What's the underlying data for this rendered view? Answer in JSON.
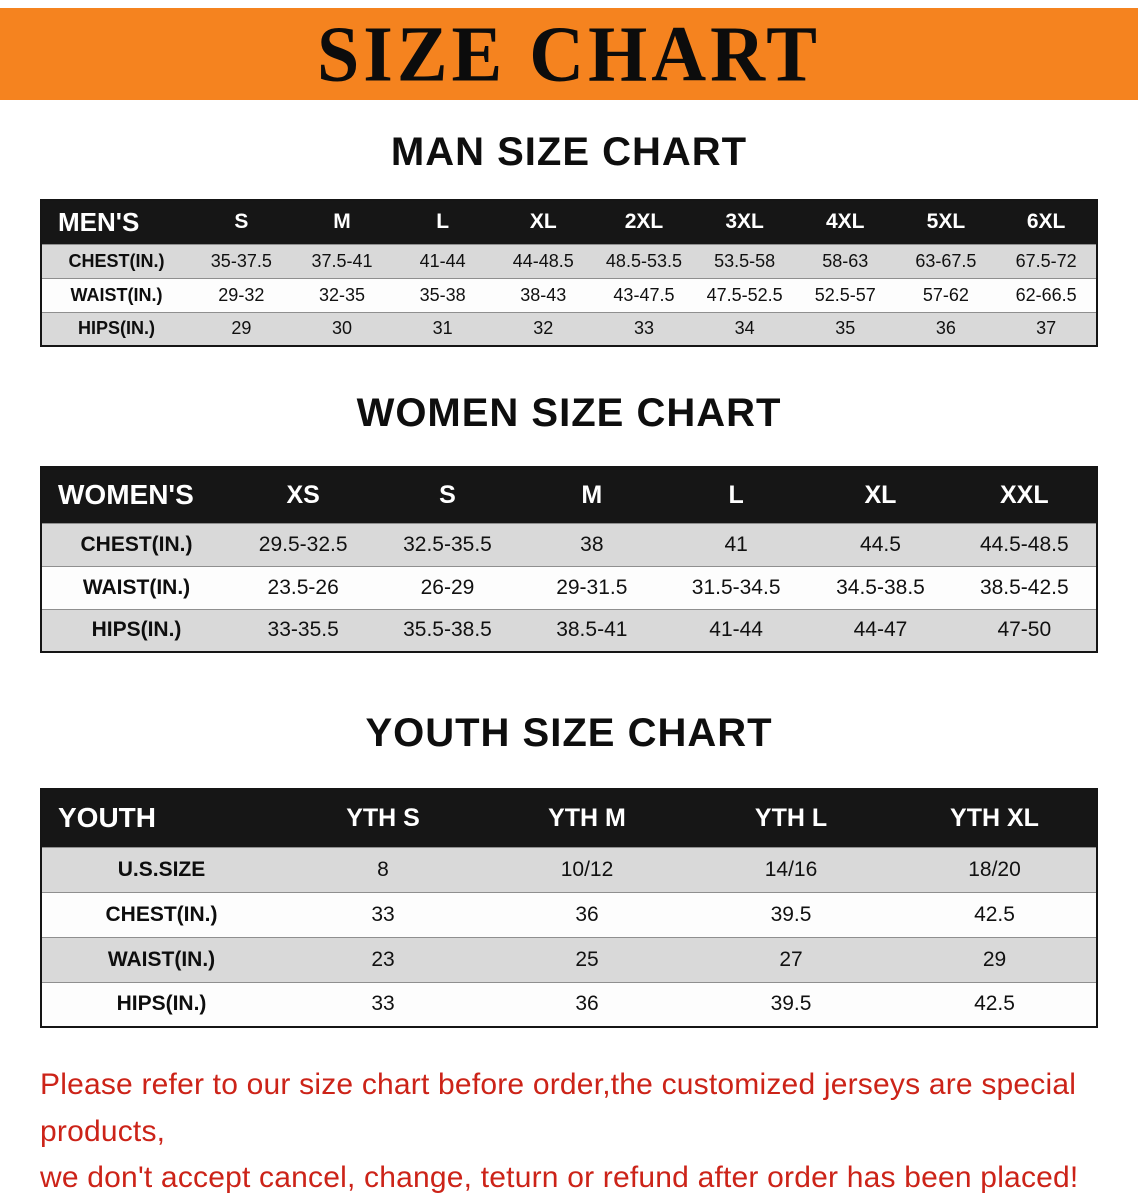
{
  "banner": {
    "title": "SIZE CHART"
  },
  "sections": [
    {
      "heading": "MAN SIZE CHART",
      "table": {
        "header": [
          "MEN'S",
          "S",
          "M",
          "L",
          "XL",
          "2XL",
          "3XL",
          "4XL",
          "5XL",
          "6XL"
        ],
        "rows": [
          [
            "CHEST(IN.)",
            "35-37.5",
            "37.5-41",
            "41-44",
            "44-48.5",
            "48.5-53.5",
            "53.5-58",
            "58-63",
            "63-67.5",
            "67.5-72"
          ],
          [
            "WAIST(IN.)",
            "29-32",
            "32-35",
            "35-38",
            "38-43",
            "43-47.5",
            "47.5-52.5",
            "52.5-57",
            "57-62",
            "62-66.5"
          ],
          [
            "HIPS(IN.)",
            "29",
            "30",
            "31",
            "32",
            "33",
            "34",
            "35",
            "36",
            "37"
          ]
        ]
      }
    },
    {
      "heading": "WOMEN SIZE CHART",
      "table": {
        "header": [
          "WOMEN'S",
          "XS",
          "S",
          "M",
          "L",
          "XL",
          "XXL"
        ],
        "rows": [
          [
            "CHEST(IN.)",
            "29.5-32.5",
            "32.5-35.5",
            "38",
            "41",
            "44.5",
            "44.5-48.5"
          ],
          [
            "WAIST(IN.)",
            "23.5-26",
            "26-29",
            "29-31.5",
            "31.5-34.5",
            "34.5-38.5",
            "38.5-42.5"
          ],
          [
            "HIPS(IN.)",
            "33-35.5",
            "35.5-38.5",
            "38.5-41",
            "41-44",
            "44-47",
            "47-50"
          ]
        ]
      }
    },
    {
      "heading": "YOUTH SIZE CHART",
      "table": {
        "header": [
          "YOUTH",
          "YTH S",
          "YTH M",
          "YTH L",
          "YTH XL"
        ],
        "rows": [
          [
            "U.S.SIZE",
            "8",
            "10/12",
            "14/16",
            "18/20"
          ],
          [
            "CHEST(IN.)",
            "33",
            "36",
            "39.5",
            "42.5"
          ],
          [
            "WAIST(IN.)",
            "23",
            "25",
            "27",
            "29"
          ],
          [
            "HIPS(IN.)",
            "33",
            "36",
            "39.5",
            "42.5"
          ]
        ]
      }
    }
  ],
  "footer": {
    "line1": "Please refer to our size chart before order,the customized jerseys are special products,",
    "line2": "we don't accept cancel, change, teturn or refund after order has been placed!"
  },
  "colors": {
    "banner_bg": "#f5831f",
    "header_bg": "#161616",
    "header_text": "#ffffff",
    "row_gray": "#d9d9d9",
    "row_white": "#fdfdfd",
    "note_red": "#cc2318"
  }
}
